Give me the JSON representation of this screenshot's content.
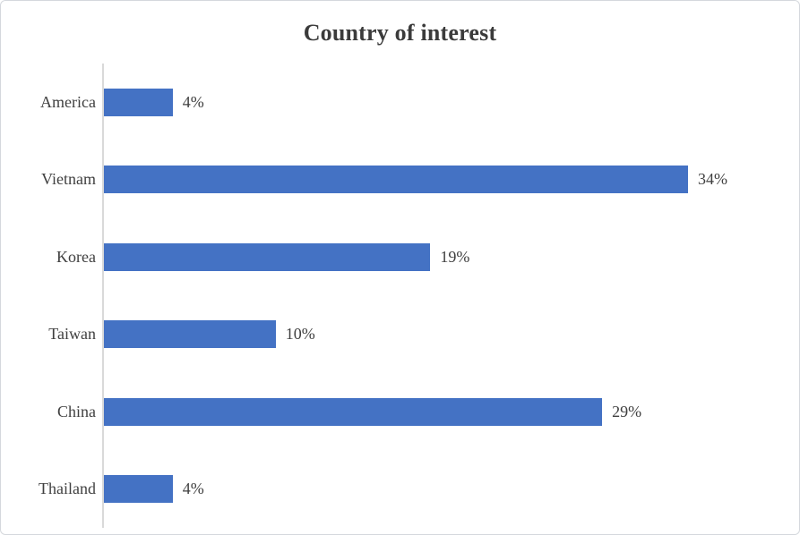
{
  "chart_data": {
    "type": "bar",
    "orientation": "horizontal",
    "title": "Country of interest",
    "categories": [
      "America",
      "Vietnam",
      "Korea",
      "Taiwan",
      "China",
      "Thailand"
    ],
    "values": [
      4,
      34,
      19,
      10,
      29,
      4
    ],
    "data_labels": [
      "4%",
      "34%",
      "19%",
      "10%",
      "29%",
      "4%"
    ],
    "xlabel": "",
    "ylabel": "",
    "xlim": [
      0,
      40
    ],
    "grid": false,
    "legend": false,
    "colors": {
      "bar_fill": "#4472C4",
      "axis_line": "#D9D9D9",
      "title_text": "#3B3B3B",
      "label_text": "#404040",
      "figure_border": "#D5D8DD",
      "background": "#FFFFFF"
    }
  }
}
